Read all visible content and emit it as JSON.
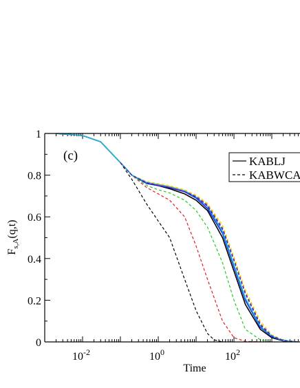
{
  "chart_data": {
    "type": "line",
    "panel_label": "(c)",
    "xlabel": "Time",
    "ylabel": {
      "base": "F",
      "sub": "s,A",
      "args": "(q,t)"
    },
    "xscale": "log",
    "xlim": [
      0.0005,
      10000
    ],
    "ylim": [
      0,
      1
    ],
    "x_ticks": [
      {
        "value": 0.01,
        "base": "10",
        "exp": "-2"
      },
      {
        "value": 1,
        "base": "10",
        "exp": "0"
      },
      {
        "value": 100,
        "base": "10",
        "exp": "2"
      }
    ],
    "y_ticks": [
      {
        "value": 0,
        "label": "0"
      },
      {
        "value": 0.2,
        "label": "0.2"
      },
      {
        "value": 0.4,
        "label": "0.4"
      },
      {
        "value": 0.6,
        "label": "0.6"
      },
      {
        "value": 0.8,
        "label": "0.8"
      },
      {
        "value": 1,
        "label": "1"
      }
    ],
    "legend": {
      "position": "top-right",
      "entries": [
        {
          "label": "KABLJ",
          "dash": "solid"
        },
        {
          "label": "KABWCA",
          "dash": "dashed"
        }
      ]
    },
    "series": [
      {
        "color": "#000000",
        "dash": "solid",
        "x": [
          0.002,
          0.01,
          0.03,
          0.1,
          0.2,
          0.5,
          1,
          2,
          5,
          10,
          20,
          50,
          100,
          200,
          500,
          1000,
          2000,
          5000
        ],
        "y": [
          1.0,
          0.99,
          0.96,
          0.86,
          0.8,
          0.76,
          0.75,
          0.735,
          0.71,
          0.68,
          0.63,
          0.5,
          0.34,
          0.18,
          0.06,
          0.02,
          0.005,
          0.0
        ]
      },
      {
        "color": "#1f2bd6",
        "dash": "solid",
        "x": [
          0.002,
          0.01,
          0.03,
          0.1,
          0.2,
          0.5,
          1,
          2,
          5,
          10,
          20,
          50,
          100,
          200,
          500,
          1000,
          2000,
          5000
        ],
        "y": [
          1.0,
          0.99,
          0.96,
          0.86,
          0.8,
          0.76,
          0.75,
          0.74,
          0.72,
          0.69,
          0.64,
          0.52,
          0.36,
          0.2,
          0.07,
          0.025,
          0.006,
          0.0
        ]
      },
      {
        "color": "#22b9d6",
        "dash": "solid",
        "x": [
          0.002,
          0.01,
          0.03,
          0.1,
          0.2,
          0.5,
          1,
          2,
          5,
          10,
          20,
          50,
          100,
          200,
          500,
          1000,
          2000,
          5000
        ],
        "y": [
          1.0,
          0.99,
          0.96,
          0.86,
          0.8,
          0.765,
          0.755,
          0.745,
          0.725,
          0.695,
          0.65,
          0.53,
          0.37,
          0.21,
          0.075,
          0.028,
          0.007,
          0.0
        ]
      },
      {
        "color": "#000000",
        "dash": "dashed",
        "x": [
          0.1,
          0.2,
          0.5,
          1,
          2,
          5,
          10,
          20,
          30,
          50,
          100
        ],
        "y": [
          0.86,
          0.78,
          0.66,
          0.58,
          0.5,
          0.3,
          0.15,
          0.04,
          0.01,
          0.0,
          0.0
        ]
      },
      {
        "color": "#e31a1c",
        "dash": "dashed",
        "x": [
          0.1,
          0.2,
          0.5,
          1,
          2,
          5,
          10,
          20,
          50,
          100,
          200,
          500
        ],
        "y": [
          0.86,
          0.8,
          0.74,
          0.71,
          0.68,
          0.6,
          0.46,
          0.3,
          0.1,
          0.02,
          0.003,
          0.0
        ]
      },
      {
        "color": "#22cc22",
        "dash": "dashed",
        "x": [
          0.1,
          0.2,
          0.5,
          1,
          2,
          5,
          10,
          20,
          50,
          100,
          200,
          500,
          1000
        ],
        "y": [
          0.86,
          0.8,
          0.75,
          0.73,
          0.715,
          0.68,
          0.63,
          0.55,
          0.38,
          0.2,
          0.06,
          0.01,
          0.0
        ]
      },
      {
        "color": "#ff8c00",
        "dash": "dashed",
        "x": [
          0.1,
          0.2,
          0.5,
          1,
          2,
          5,
          10,
          20,
          50,
          100,
          200,
          500,
          1000,
          2000,
          5000
        ],
        "y": [
          0.86,
          0.8,
          0.765,
          0.755,
          0.745,
          0.725,
          0.7,
          0.66,
          0.55,
          0.4,
          0.24,
          0.09,
          0.03,
          0.008,
          0.0
        ]
      },
      {
        "color": "#e6e600",
        "dash": "dashed",
        "x": [
          0.1,
          0.2,
          0.5,
          1,
          2,
          5,
          10,
          20,
          50,
          100,
          200,
          500,
          1000,
          2000,
          5000
        ],
        "y": [
          0.86,
          0.8,
          0.77,
          0.76,
          0.75,
          0.73,
          0.705,
          0.665,
          0.56,
          0.41,
          0.25,
          0.1,
          0.035,
          0.01,
          0.0
        ]
      },
      {
        "color": "#8a2be2",
        "dash": "dashed",
        "x": [
          0.1,
          0.2,
          0.5,
          1,
          2,
          5,
          10,
          20,
          50,
          100,
          200,
          500,
          1000,
          2000,
          5000
        ],
        "y": [
          0.86,
          0.8,
          0.765,
          0.752,
          0.742,
          0.722,
          0.698,
          0.655,
          0.545,
          0.395,
          0.235,
          0.085,
          0.03,
          0.008,
          0.0
        ]
      },
      {
        "color": "#1f2bd6",
        "dash": "dashed",
        "x": [
          0.1,
          0.2,
          0.5,
          1,
          2,
          5,
          10,
          20,
          50,
          100,
          200,
          500,
          1000,
          2000,
          5000
        ],
        "y": [
          0.86,
          0.8,
          0.762,
          0.75,
          0.74,
          0.72,
          0.695,
          0.65,
          0.54,
          0.39,
          0.23,
          0.08,
          0.028,
          0.007,
          0.0
        ]
      }
    ]
  }
}
